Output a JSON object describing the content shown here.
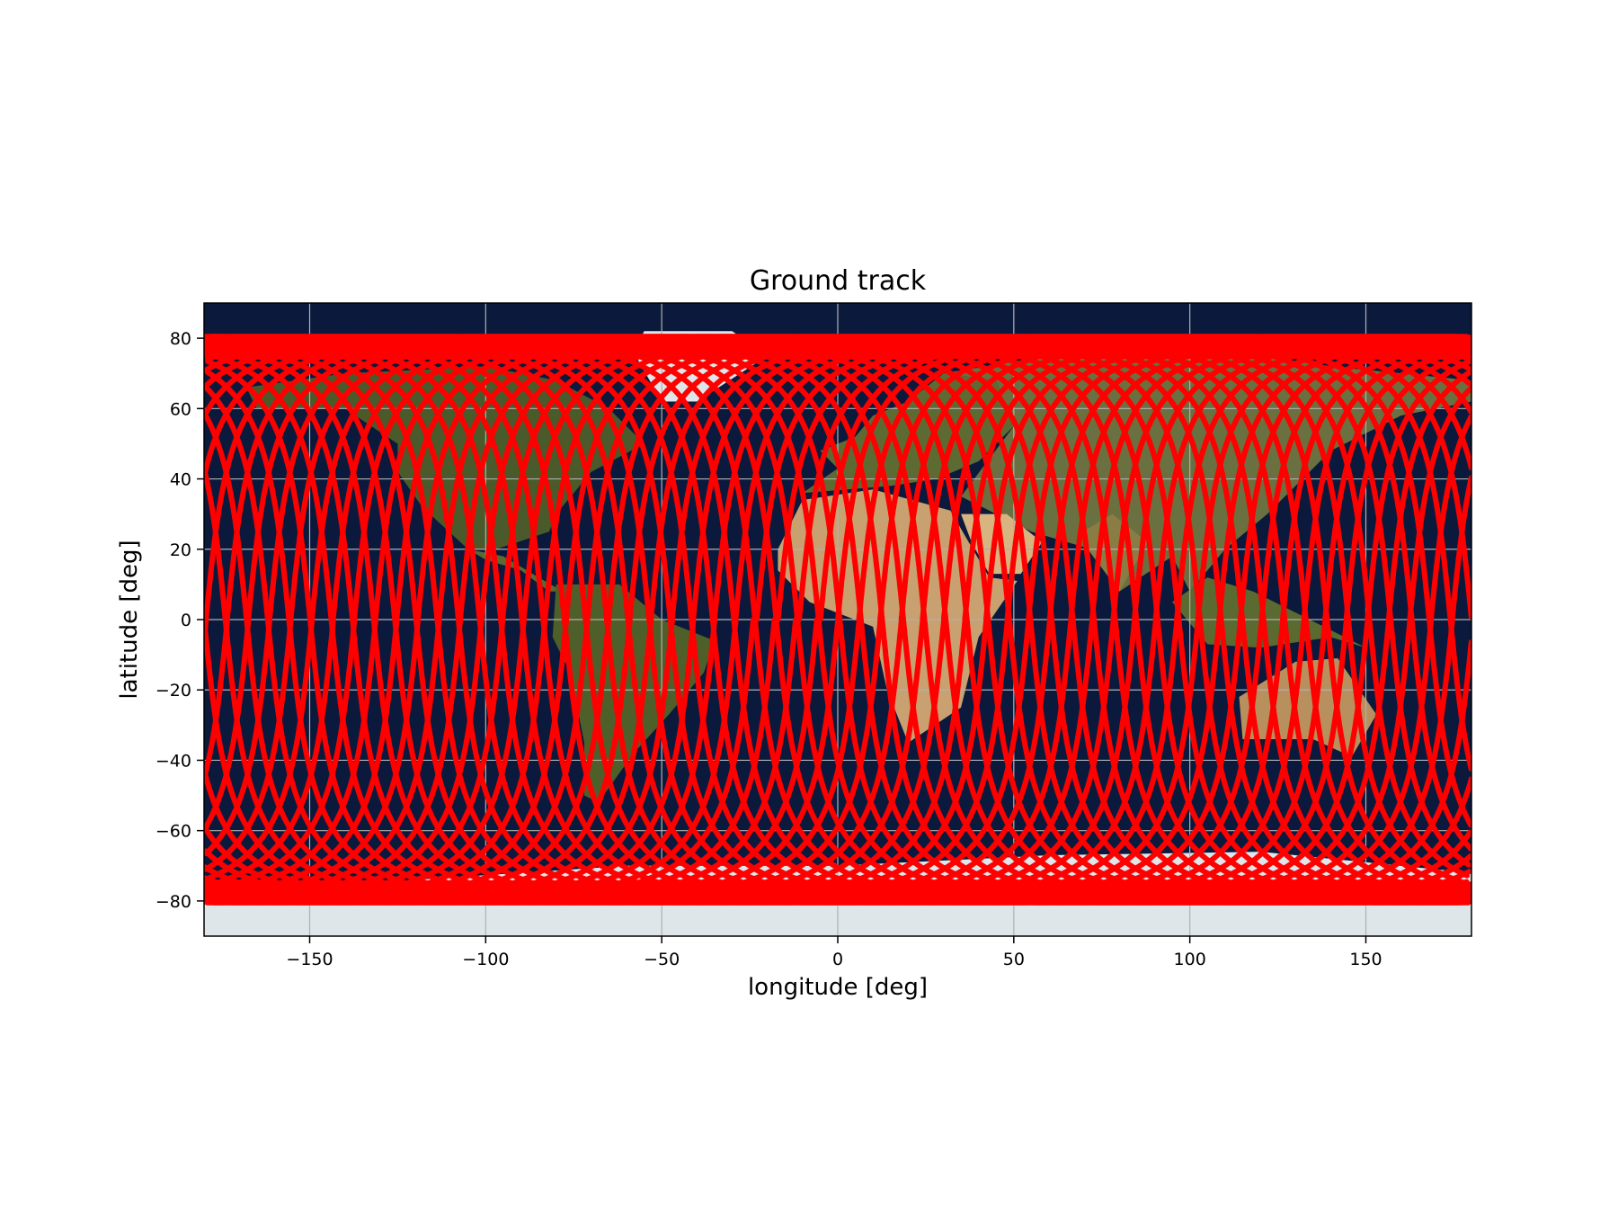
{
  "chart_data": {
    "type": "scatter",
    "title": "Ground track",
    "xlabel": "longitude [deg]",
    "ylabel": "latitude [deg]",
    "xlim": [
      -180,
      180
    ],
    "ylim": [
      -90,
      90
    ],
    "xticks": [
      -150,
      -100,
      -50,
      0,
      50,
      100,
      150
    ],
    "yticks": [
      -80,
      -60,
      -40,
      -20,
      0,
      20,
      40,
      60,
      80
    ],
    "xtick_labels": [
      "−150",
      "−100",
      "−50",
      "0",
      "50",
      "100",
      "150"
    ],
    "ytick_labels": [
      "−80",
      "−60",
      "−40",
      "−20",
      "0",
      "20",
      "40",
      "60",
      "80"
    ],
    "grid": true,
    "background": "world map",
    "marker_color": "#ff0000",
    "series": [
      {
        "inclination_deg": 80.5,
        "lat_range": [
          -80.5,
          80.5
        ],
        "lon_range": [
          -180,
          180
        ],
        "description": "dense repeating orbital ground track covering all longitudes"
      }
    ]
  }
}
